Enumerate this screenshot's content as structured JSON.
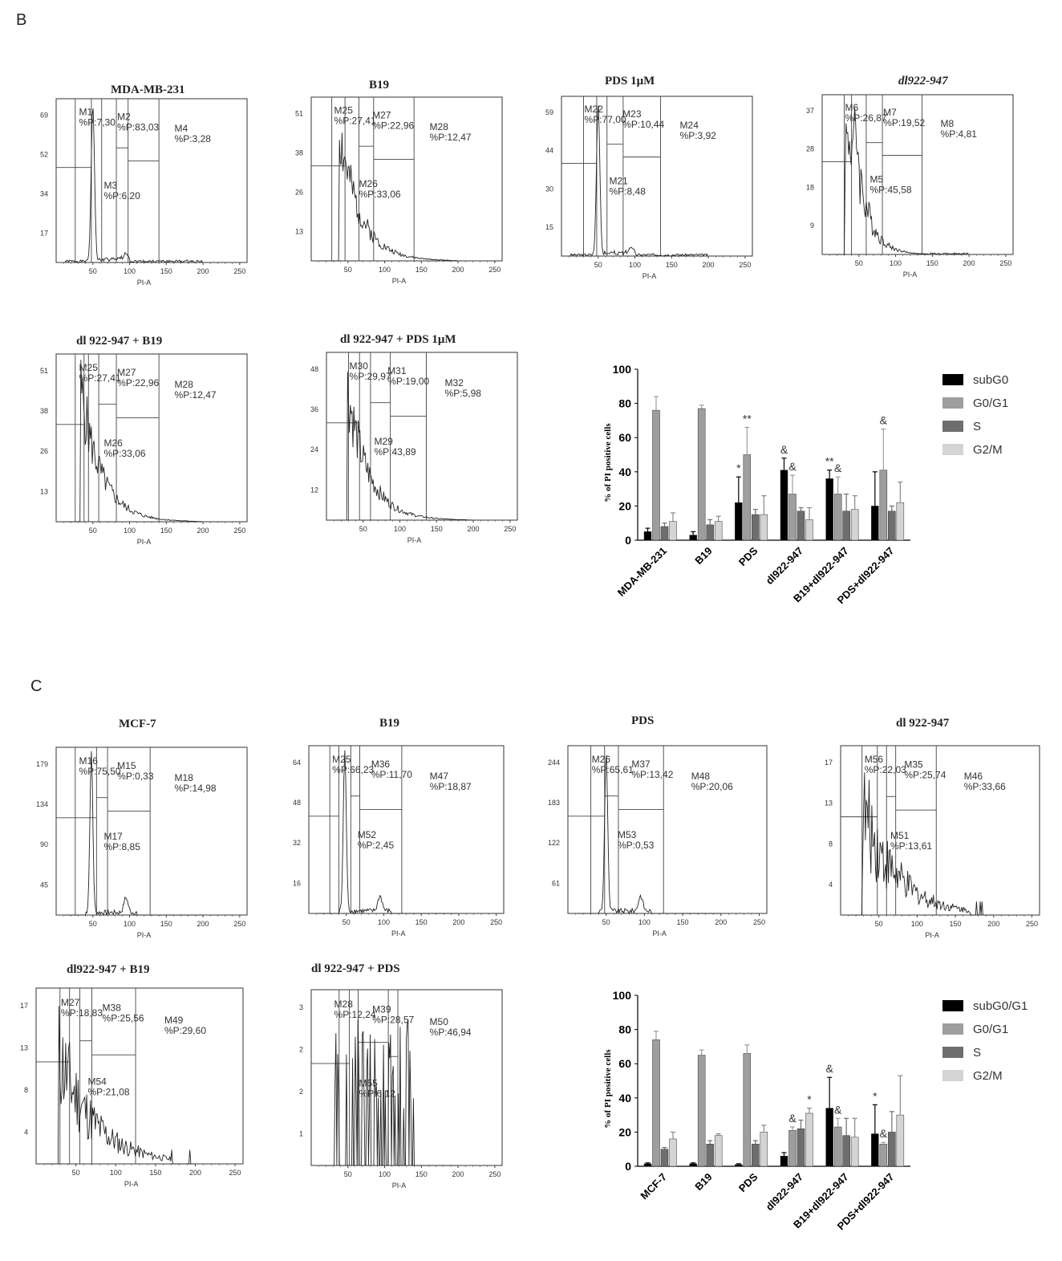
{
  "panels": {
    "B": {
      "letter": "B",
      "histograms": [
        {
          "title": "MDA-MB-231",
          "yticks": [
            "69",
            "52",
            "34",
            "17"
          ],
          "xticks": [
            "50",
            "100",
            "150",
            "200",
            "250"
          ],
          "xlabel": "PI-A",
          "gates": [
            {
              "name": "M1",
              "pct": "%P:7,30"
            },
            {
              "name": "M2",
              "pct": "%P:83,03"
            },
            {
              "name": "M3",
              "pct": "%P:6,20"
            },
            {
              "name": "M4",
              "pct": "%P:3,28"
            }
          ]
        },
        {
          "title": "B19",
          "yticks": [
            "51",
            "38",
            "26",
            "13"
          ],
          "xticks": [
            "50",
            "100",
            "150",
            "200",
            "250"
          ],
          "xlabel": "PI-A",
          "gates": [
            {
              "name": "M25",
              "pct": "%P:27,41"
            },
            {
              "name": "M27",
              "pct": "%P:22,96"
            },
            {
              "name": "M26",
              "pct": "%P:33,06"
            },
            {
              "name": "M28",
              "pct": "%P:12,47"
            }
          ]
        },
        {
          "title": "PDS 1μM",
          "yticks": [
            "59",
            "44",
            "30",
            "15"
          ],
          "xticks": [
            "50",
            "100",
            "150",
            "200",
            "250"
          ],
          "xlabel": "PI-A",
          "gates": [
            {
              "name": "M22",
              "pct": "%P:77,00"
            },
            {
              "name": "M23",
              "pct": "%P:10,44"
            },
            {
              "name": "M21",
              "pct": "%P:8,48"
            },
            {
              "name": "M24",
              "pct": "%P:3,92"
            }
          ]
        },
        {
          "title": "dl922-947",
          "yticks": [
            "37",
            "28",
            "18",
            "9"
          ],
          "xticks": [
            "50",
            "100",
            "150",
            "200",
            "250"
          ],
          "xlabel": "PI-A",
          "gates": [
            {
              "name": "M6",
              "pct": "%P:26,87"
            },
            {
              "name": "M7",
              "pct": "%P:19,52"
            },
            {
              "name": "M5",
              "pct": "%P:45,58"
            },
            {
              "name": "M8",
              "pct": "%P:4,81"
            }
          ]
        },
        {
          "title": "dl 922-947 + B19",
          "yticks": [
            "51",
            "38",
            "26",
            "13"
          ],
          "xticks": [
            "50",
            "100",
            "150",
            "200",
            "250"
          ],
          "xlabel": "PI-A",
          "gates": [
            {
              "name": "M25",
              "pct": "%P:27,41"
            },
            {
              "name": "M27",
              "pct": "%P:22,96"
            },
            {
              "name": "M26",
              "pct": "%P:33,06"
            },
            {
              "name": "M28",
              "pct": "%P:12,47"
            }
          ]
        },
        {
          "title": "dl 922-947 + PDS 1μM",
          "yticks": [
            "48",
            "36",
            "24",
            "12"
          ],
          "xticks": [
            "50",
            "100",
            "150",
            "200",
            "250"
          ],
          "xlabel": "PI-A",
          "gates": [
            {
              "name": "M30",
              "pct": "%P:29,97"
            },
            {
              "name": "M31",
              "pct": "%P:19,00"
            },
            {
              "name": "M29",
              "pct": "%P:43,89"
            },
            {
              "name": "M32",
              "pct": "%P:5,98"
            }
          ]
        }
      ]
    },
    "C": {
      "letter": "C",
      "histograms": [
        {
          "title": "MCF-7",
          "yticks": [
            "179",
            "134",
            "90",
            "45"
          ],
          "xticks": [
            "50",
            "100",
            "150",
            "200",
            "250"
          ],
          "xlabel": "PI-A",
          "gates": [
            {
              "name": "M16",
              "pct": "%P:75,50"
            },
            {
              "name": "M15",
              "pct": "%P:0,33"
            },
            {
              "name": "M17",
              "pct": "%P:8,85"
            },
            {
              "name": "M18",
              "pct": "%P:14,98"
            }
          ]
        },
        {
          "title": "B19",
          "yticks": [
            "64",
            "48",
            "32",
            "16"
          ],
          "xticks": [
            "50",
            "100",
            "150",
            "200",
            "250"
          ],
          "xlabel": "PI-A",
          "gates": [
            {
              "name": "M25",
              "pct": "%P:66,23"
            },
            {
              "name": "M36",
              "pct": "%P:11,70"
            },
            {
              "name": "M52",
              "pct": "%P:2,45"
            },
            {
              "name": "M47",
              "pct": "%P:18,87"
            }
          ]
        },
        {
          "title": "PDS",
          "yticks": [
            "244",
            "183",
            "122",
            "61"
          ],
          "xticks": [
            "50",
            "100",
            "150",
            "200",
            "250"
          ],
          "xlabel": "PI-A",
          "gates": [
            {
              "name": "M26",
              "pct": "%P:65,61"
            },
            {
              "name": "M37",
              "pct": "%P:13,42"
            },
            {
              "name": "M53",
              "pct": "%P:0,53"
            },
            {
              "name": "M48",
              "pct": "%P:20,06"
            }
          ]
        },
        {
          "title": "dl 922-947",
          "yticks": [
            "17",
            "13",
            "8",
            "4"
          ],
          "xticks": [
            "50",
            "100",
            "150",
            "200",
            "250"
          ],
          "xlabel": "PI-A",
          "gates": [
            {
              "name": "M56",
              "pct": "%P:22,03"
            },
            {
              "name": "M35",
              "pct": "%P:25,74"
            },
            {
              "name": "M51",
              "pct": "%P:13,61"
            },
            {
              "name": "M46",
              "pct": "%P:33,66"
            }
          ]
        },
        {
          "title": "dl922-947 + B19",
          "yticks": [
            "17",
            "13",
            "8",
            "4"
          ],
          "xticks": [
            "50",
            "100",
            "150",
            "200",
            "250"
          ],
          "xlabel": "PI-A",
          "gates": [
            {
              "name": "M27",
              "pct": "%P:18,83"
            },
            {
              "name": "M38",
              "pct": "%P:25,56"
            },
            {
              "name": "M54",
              "pct": "%P:21,08"
            },
            {
              "name": "M49",
              "pct": "%P:29,60"
            }
          ]
        },
        {
          "title": "dl 922-947 + PDS",
          "yticks": [
            "3",
            "2",
            "2",
            "1"
          ],
          "xticks": [
            "50",
            "100",
            "150",
            "200",
            "250"
          ],
          "xlabel": "PI-A",
          "gates": [
            {
              "name": "M28",
              "pct": "%P:12,24"
            },
            {
              "name": "M39",
              "pct": "%P:28,57"
            },
            {
              "name": "M55",
              "pct": "%P:6,12"
            },
            {
              "name": "M50",
              "pct": "%P:46,94"
            }
          ]
        }
      ]
    }
  },
  "chart_data": [
    {
      "type": "bar",
      "panel": "B",
      "ylabel": "% of PI positive cells",
      "ylim": [
        0,
        100
      ],
      "yticks": [
        "0",
        "20",
        "40",
        "60",
        "80",
        "100"
      ],
      "categories": [
        "MDA-MB-231",
        "B19",
        "PDS",
        "dl922-947",
        "B19+dl922-947",
        "PDS+dl922-947"
      ],
      "series": [
        {
          "name": "subG0",
          "color": "#000000",
          "values": [
            5,
            3,
            22,
            41,
            36,
            20
          ],
          "errors": [
            2,
            2,
            15,
            7,
            5,
            20
          ]
        },
        {
          "name": "G0/G1",
          "color": "#9e9e9e",
          "values": [
            76,
            77,
            50,
            27,
            27,
            41
          ],
          "errors": [
            8,
            2,
            16,
            11,
            10,
            24
          ]
        },
        {
          "name": "S",
          "color": "#6e6e6e",
          "values": [
            8,
            9,
            15,
            17,
            17,
            17
          ],
          "errors": [
            2,
            3,
            3,
            2,
            10,
            3
          ]
        },
        {
          "name": "G2/M",
          "color": "#d4d4d4",
          "values": [
            11,
            11,
            15,
            12,
            18,
            22
          ],
          "errors": [
            5,
            3,
            11,
            7,
            8,
            12
          ]
        }
      ],
      "annotations": [
        {
          "text": "*",
          "category": 2,
          "series": 0
        },
        {
          "text": "**",
          "category": 2,
          "series": 1
        },
        {
          "text": "&",
          "category": 3,
          "series": 0
        },
        {
          "text": "&",
          "category": 3,
          "series": 1
        },
        {
          "text": "**",
          "category": 4,
          "series": 0
        },
        {
          "text": "&",
          "category": 4,
          "series": 1
        },
        {
          "text": "&",
          "category": 5,
          "series": 1
        }
      ]
    },
    {
      "type": "bar",
      "panel": "C",
      "ylabel": "% of PI positive cells",
      "ylim": [
        0,
        100
      ],
      "yticks": [
        "0",
        "20",
        "40",
        "60",
        "80",
        "100"
      ],
      "categories": [
        "MCF-7",
        "B19",
        "PDS",
        "dl922-947",
        "B19+dl922-947",
        "PDS+dl922-947"
      ],
      "series": [
        {
          "name": "subG0/G1",
          "color": "#000000",
          "values": [
            1.5,
            1.5,
            1,
            6,
            34,
            19
          ],
          "errors": [
            0.5,
            0.5,
            0.5,
            2,
            18,
            17
          ]
        },
        {
          "name": "G0/G1",
          "color": "#9e9e9e",
          "values": [
            74,
            65,
            66,
            21,
            23,
            13
          ],
          "errors": [
            5,
            3,
            5,
            2,
            5,
            1
          ]
        },
        {
          "name": "S",
          "color": "#6e6e6e",
          "values": [
            10,
            13,
            13,
            22,
            18,
            20
          ],
          "errors": [
            1,
            2,
            2,
            5,
            10,
            12
          ]
        },
        {
          "name": "G2/M",
          "color": "#d4d4d4",
          "values": [
            16,
            18,
            20,
            31,
            17,
            30
          ],
          "errors": [
            4,
            1,
            4,
            3,
            11,
            23
          ]
        }
      ],
      "annotations": [
        {
          "text": "&",
          "category": 3,
          "series": 1
        },
        {
          "text": "*",
          "category": 3,
          "series": 3
        },
        {
          "text": "&",
          "category": 4,
          "series": 0
        },
        {
          "text": "&",
          "category": 4,
          "series": 1
        },
        {
          "text": "*",
          "category": 5,
          "series": 0
        },
        {
          "text": "&",
          "category": 5,
          "series": 1
        }
      ]
    }
  ]
}
